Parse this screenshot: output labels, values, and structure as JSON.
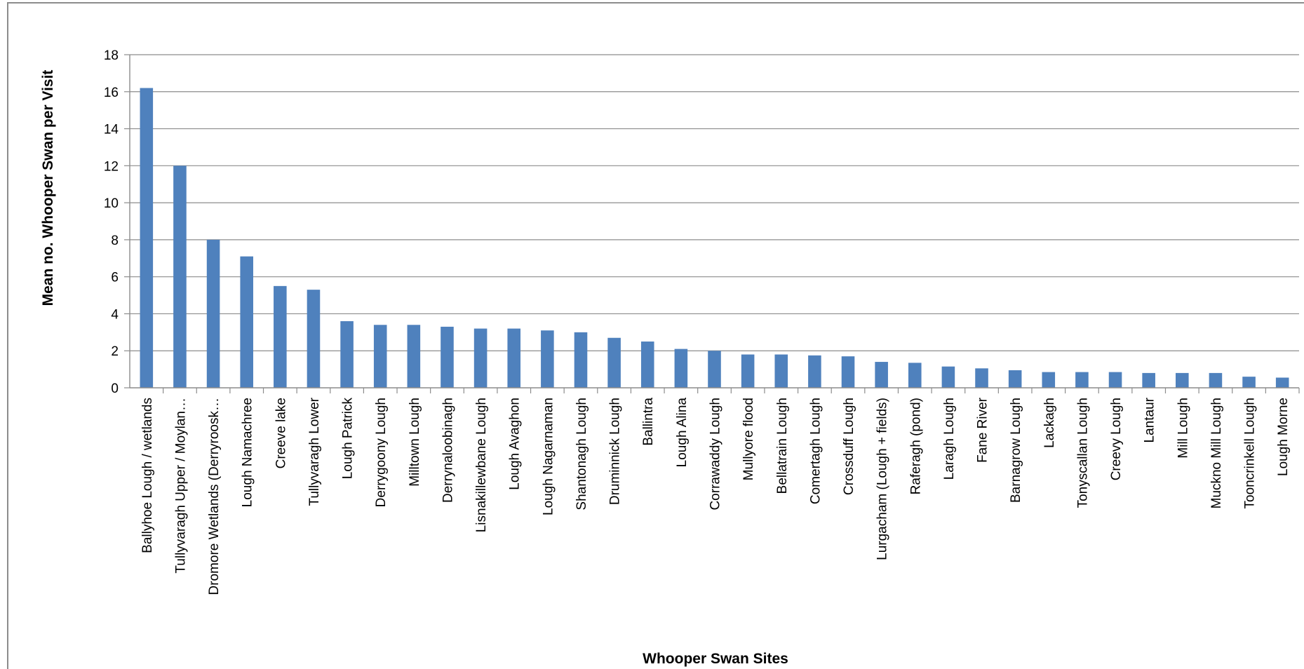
{
  "chart_data": {
    "type": "bar",
    "title": "",
    "xlabel": "Whooper Swan Sites",
    "ylabel": "Mean no. Whooper Swan per Visit",
    "ylim": [
      0,
      18
    ],
    "yticks": [
      0,
      2,
      4,
      6,
      8,
      10,
      12,
      14,
      16,
      18
    ],
    "grid": true,
    "bar_color": "#4f81bd",
    "categories": [
      "Ballyhoe Lough / wetlands",
      "Tullyvaragh Upper / Moylan…",
      "Dromore Wetlands (Derryroosk…",
      "Lough Namachree",
      "Creeve lake",
      "Tullyvaragh Lower",
      "Lough Patrick",
      "Derrygoony Lough",
      "Milltown Lough",
      "Derrynaloobinagh",
      "Lisnakillewbane Lough",
      "Lough Avaghon",
      "Lough Nagarnaman",
      "Shantonagh Lough",
      "Druminnick Lough",
      "Ballintra",
      "Lough Alina",
      "Corrawaddy Lough",
      "Mullyore flood",
      "Bellatrain Lough",
      "Comertagh Lough",
      "Crossduff Lough",
      "Lurgacham (Lough + fields)",
      "Raferagh (pond)",
      "Laragh Lough",
      "Fane River",
      "Barnagrow Lough",
      "Lackagh",
      "Tonyscallan Lough",
      "Creevy Lough",
      "Lantaur",
      "Mill Lough",
      "Muckno Mill Lough",
      "Tooncrinkell Lough",
      "Lough Morne"
    ],
    "values": [
      16.2,
      12.0,
      8.0,
      7.1,
      5.5,
      5.3,
      3.6,
      3.4,
      3.4,
      3.3,
      3.2,
      3.2,
      3.1,
      3.0,
      2.7,
      2.5,
      2.1,
      2.0,
      1.8,
      1.8,
      1.75,
      1.7,
      1.4,
      1.35,
      1.15,
      1.05,
      0.95,
      0.85,
      0.85,
      0.85,
      0.8,
      0.8,
      0.8,
      0.6,
      0.55
    ]
  }
}
